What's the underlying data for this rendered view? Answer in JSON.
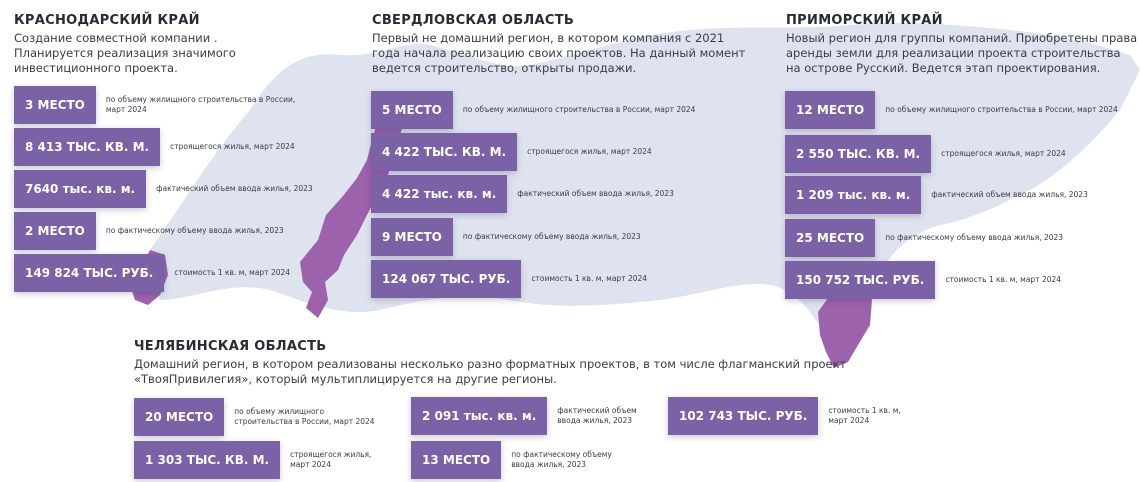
{
  "colors": {
    "badge": "#7b61a6",
    "map_land": "#dfe3ef",
    "map_highlight": "#9c62ac"
  },
  "krasnodar": {
    "title": "КРАСНОДАРСКИЙ КРАЙ",
    "desc": [
      "Создание совместной компании .",
      "Планируется реализация значимого",
      "инвестиционного проекта."
    ],
    "stats": [
      {
        "value": "3 МЕСТО",
        "note": [
          "по объему жилищного строительства в России,",
          "март 2024"
        ]
      },
      {
        "value": "8 413 ТЫС. КВ. М.",
        "note": [
          "строящегося жилья, март 2024"
        ]
      },
      {
        "value": "7640 тыс. кв. м.",
        "note": [
          "фактический объем ввода жилья, 2023"
        ]
      },
      {
        "value": "2 МЕСТО",
        "note": [
          "по фактическому объему ввода жилья, 2023"
        ]
      },
      {
        "value": "149 824 ТЫС. РУБ.",
        "note": [
          "стоимость 1 кв. м, март 2024"
        ]
      }
    ]
  },
  "sverdlovsk": {
    "title": "СВЕРДЛОВСКАЯ ОБЛАСТЬ",
    "desc": [
      "Первый не домашний регион, в котором компания с 2021",
      "года начала реализацию своих проектов. На данный момент",
      "ведется строительство, открыты продажи."
    ],
    "stats": [
      {
        "value": "5 МЕСТО",
        "note": [
          "по объему жилищного строительства в России, март 2024"
        ]
      },
      {
        "value": "4 422 ТЫС. КВ. М.",
        "note": [
          "строящегося жилья, март 2024"
        ]
      },
      {
        "value": "4 422 тыс. кв. м.",
        "note": [
          "фактический объем ввода жилья, 2023"
        ]
      },
      {
        "value": "9 МЕСТО",
        "note": [
          "по фактическому объему ввода жилья, 2023"
        ]
      },
      {
        "value": "124 067 ТЫС. РУБ.",
        "note": [
          "стоимость 1 кв. м, март 2024"
        ]
      }
    ]
  },
  "primorsky": {
    "title": "ПРИМОРСКИЙ КРАЙ",
    "desc": [
      "Новый регион для группы компаний. Приобретены права",
      "аренды земли для реализации проекта строительства",
      "на острове Русский. Ведется этап проектирования."
    ],
    "stats": [
      {
        "value": "12 МЕСТО",
        "note": [
          "по объему жилищного строительства в России, март 2024"
        ]
      },
      {
        "value": "2 550 ТЫС. КВ. М.",
        "note": [
          "строящегося жилья, март 2024"
        ]
      },
      {
        "value": "1 209 тыс. кв. м.",
        "note": [
          "фактический объем ввода жилья, 2023"
        ]
      },
      {
        "value": "25 МЕСТО",
        "note": [
          "по фактическому объему ввода жилья, 2023"
        ]
      },
      {
        "value": "150 752 ТЫС. РУБ.",
        "note": [
          "стоимость 1 кв. м, март 2024"
        ]
      }
    ]
  },
  "chelyabinsk": {
    "title": "ЧЕЛЯБИНСКАЯ ОБЛАСТЬ",
    "desc": [
      "Домашний регион, в котором реализованы несколько разно форматных проектов, в том числе флагманский проект",
      "«ТвояПривилегия», который мультиплицируется на другие регионы."
    ],
    "stats": [
      {
        "value": "20 МЕСТО",
        "note": [
          "по объему жилищного",
          "строительства в России, март 2024"
        ]
      },
      {
        "value": "1 303 ТЫС. КВ. М.",
        "note": [
          "строящегося жилья,",
          "март 2024"
        ]
      },
      {
        "value": "2 091 тыс. кв. м.",
        "note": [
          "фактический объем",
          "ввода жилья, 2023"
        ]
      },
      {
        "value": "13 МЕСТО",
        "note": [
          "по фактическому объему",
          "ввода жилья, 2023"
        ]
      },
      {
        "value": "102 743 ТЫС. РУБ.",
        "note": [
          "стоимость 1 кв. м,",
          "март 2024"
        ]
      }
    ]
  }
}
